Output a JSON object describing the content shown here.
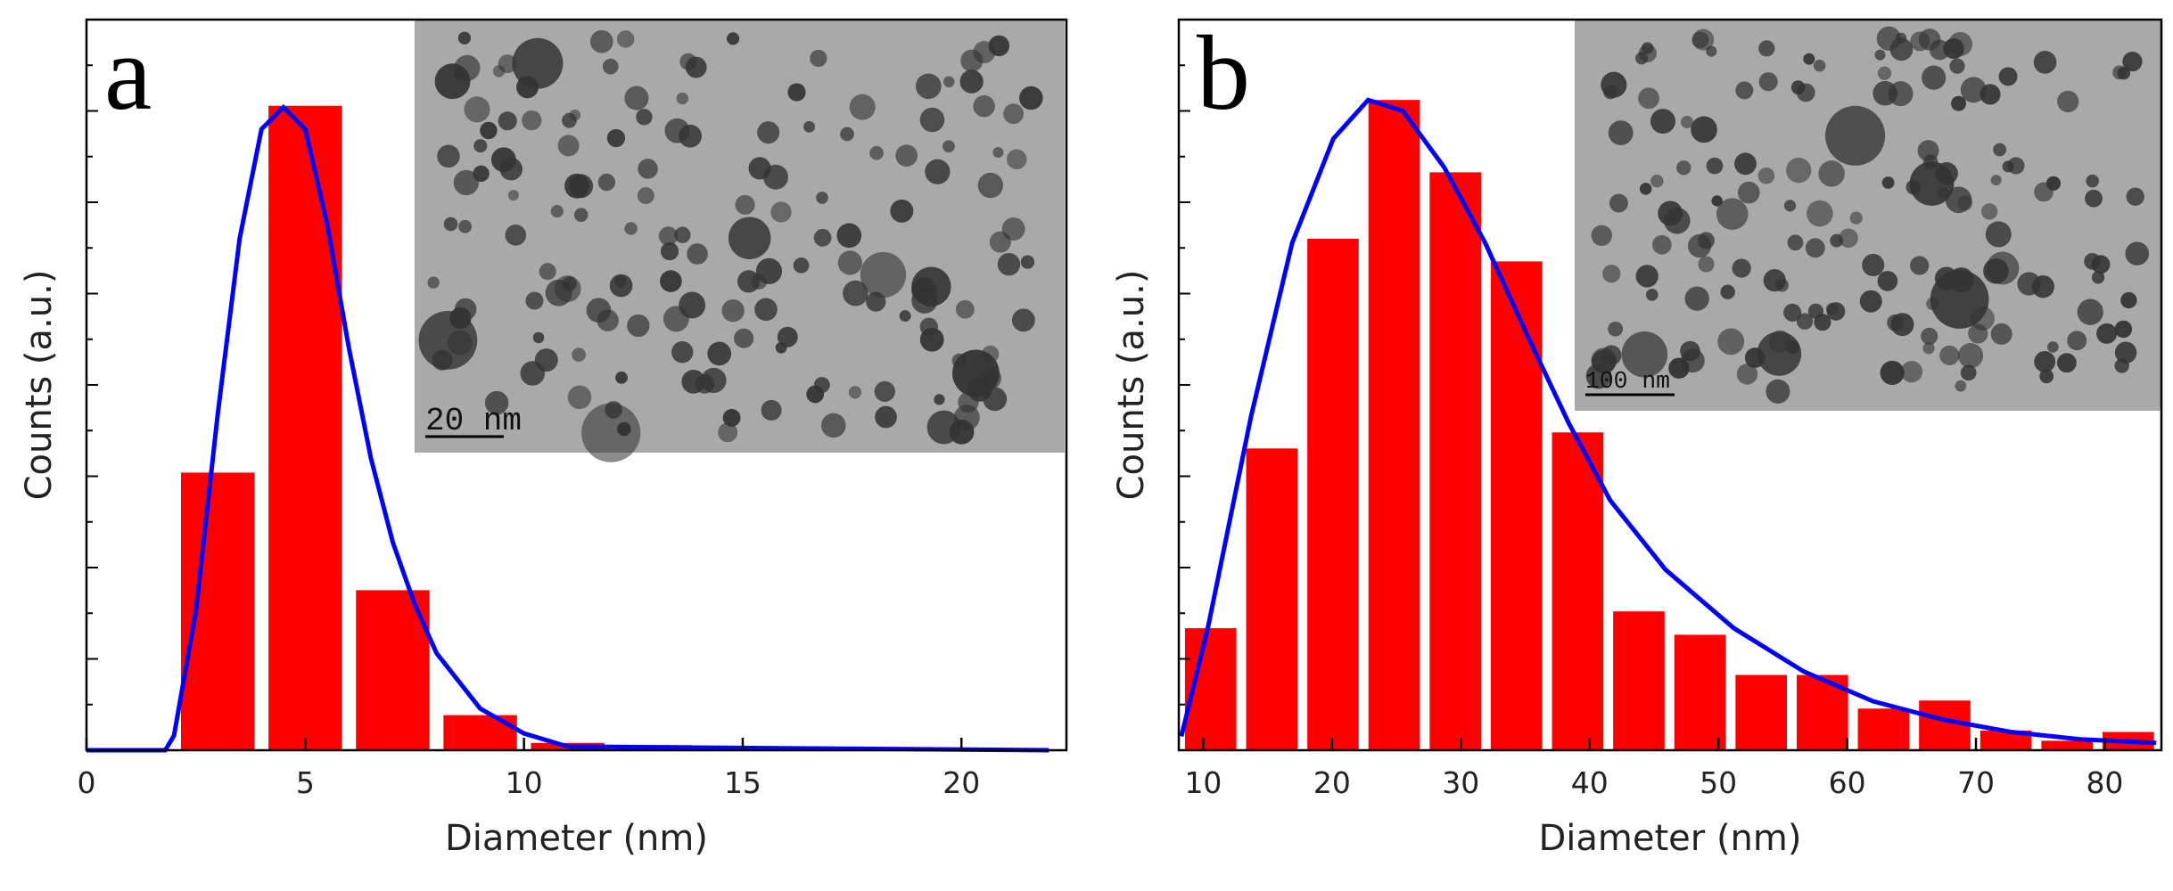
{
  "chart_data": [
    {
      "type": "histogram",
      "panel_label": "a",
      "xlabel": "Diameter (nm)",
      "ylabel": "Counts (a.u.)",
      "color": "#ff0000",
      "bins": [
        2,
        4,
        6,
        8,
        10,
        12,
        14,
        16,
        18,
        20,
        22
      ],
      "values": [
        0.38,
        0.882,
        0.219,
        0.048,
        0.01,
        0.007,
        0.004,
        0,
        0,
        0.002
      ],
      "fit": {
        "color": "#0000ff",
        "x": [
          0,
          1.8,
          2,
          2.5,
          3,
          3.5,
          4,
          4.5,
          5,
          5.5,
          6,
          6.5,
          7,
          7.5,
          8,
          9,
          10,
          11,
          22
        ],
        "values": [
          0,
          0,
          0.02,
          0.19,
          0.46,
          0.7,
          0.85,
          0.88,
          0.85,
          0.72,
          0.55,
          0.4,
          0.285,
          0.2,
          0.133,
          0.057,
          0.023,
          0.005,
          0
        ]
      },
      "xlim": [
        0,
        22.4
      ],
      "ylim": [
        0,
        1
      ],
      "xticks": [
        0,
        5,
        10,
        15,
        20
      ],
      "inset": {
        "scale_label": "20 nm"
      }
    },
    {
      "type": "histogram",
      "panel_label": "b",
      "xlabel": "Diameter (nm)",
      "ylabel": "Counts (a.u.)",
      "color": "#ff0000",
      "bins": [
        8.2,
        12.95,
        17.7,
        22.45,
        27.2,
        31.95,
        36.7,
        41.45,
        46.2,
        50.95,
        55.7,
        60.45,
        65.2,
        69.95,
        74.7,
        79.45,
        84.2
      ],
      "values": [
        0.167,
        0.413,
        0.7,
        0.89,
        0.791,
        0.669,
        0.435,
        0.19,
        0.158,
        0.103,
        0.103,
        0.057,
        0.068,
        0.027,
        0.013,
        0.025
      ],
      "fit": {
        "color": "#0000ff",
        "x": [
          8.3,
          10.4,
          13.7,
          16.9,
          20.1,
          22.8,
          25.5,
          28.7,
          31.9,
          35.1,
          38.4,
          41.6,
          45.9,
          51.2,
          56.6,
          62,
          67.4,
          72.7,
          78.1,
          84
        ],
        "values": [
          0.019,
          0.171,
          0.456,
          0.694,
          0.837,
          0.89,
          0.875,
          0.798,
          0.694,
          0.57,
          0.447,
          0.342,
          0.247,
          0.167,
          0.108,
          0.067,
          0.042,
          0.025,
          0.015,
          0.01
        ]
      },
      "xlim": [
        8.1,
        84.4
      ],
      "ylim": [
        0,
        1
      ],
      "xticks": [
        10,
        20,
        30,
        40,
        50,
        60,
        70,
        80
      ],
      "inset": {
        "scale_label": "100 nm"
      }
    }
  ]
}
